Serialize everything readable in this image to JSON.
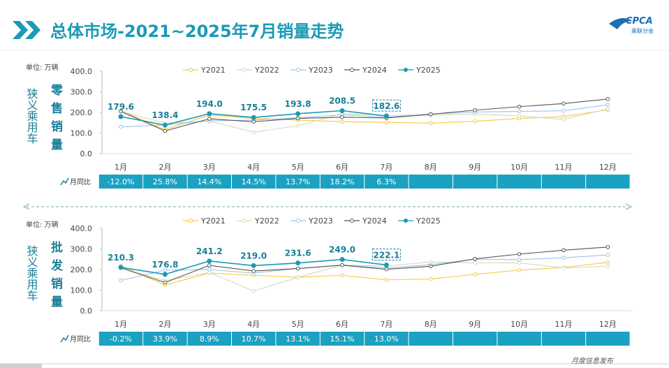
{
  "header": {
    "title": "总体市场-2021~2025年7月销量走势",
    "logo": "CPCA",
    "logo_sub": "乘联分会"
  },
  "footer": "月度信息发布",
  "chart_data": [
    {
      "type": "line",
      "segment": "狭义乘用车",
      "title": "零售销量",
      "unit": "单位: 万辆",
      "categories": [
        "1月",
        "2月",
        "3月",
        "4月",
        "5月",
        "6月",
        "7月",
        "8月",
        "9月",
        "10月",
        "11月",
        "12月"
      ],
      "ylim": [
        0,
        400
      ],
      "yticks": [
        {
          "value": 0,
          "label": "0.0"
        },
        {
          "value": 100,
          "label": "100.0"
        },
        {
          "value": 200,
          "label": "200.0"
        },
        {
          "value": 300,
          "label": "300.0"
        },
        {
          "value": 400,
          "label": "400.0"
        }
      ],
      "series": [
        {
          "name": "Y2021",
          "color": "#f5c842",
          "values": [
            208,
            117,
            187,
            171,
            163,
            155,
            152,
            148,
            157,
            171,
            180,
            213
          ]
        },
        {
          "name": "Y2022",
          "color": "#d3dcba",
          "values": [
            205,
            148,
            158,
            104,
            135,
            194,
            186,
            187,
            192,
            183,
            166,
            217
          ]
        },
        {
          "name": "Y2023",
          "color": "#9ec3ea",
          "values": [
            130,
            139,
            159,
            163,
            174,
            189,
            177,
            192,
            202,
            205,
            208,
            237
          ]
        },
        {
          "name": "Y2024",
          "color": "#555555",
          "values": [
            205,
            110,
            169,
            155,
            171,
            177,
            173,
            191,
            211,
            228,
            243,
            265
          ]
        },
        {
          "name": "Y2025",
          "color": "#1a9bb5",
          "values": [
            179.6,
            138.4,
            194.0,
            175.5,
            193.8,
            208.5,
            182.6,
            null,
            null,
            null,
            null,
            null
          ],
          "value_labels": [
            "179.6",
            "138.4",
            "194.0",
            "175.5",
            "193.8",
            "208.5",
            "182.6",
            null,
            null,
            null,
            null,
            null
          ]
        }
      ],
      "yoy": {
        "label": "月同比",
        "values": [
          -12.0,
          25.8,
          14.4,
          14.5,
          13.7,
          18.2,
          6.3
        ],
        "value_labels": [
          "-12.0%",
          "25.8%",
          "14.4%",
          "14.5%",
          "13.7%",
          "18.2%",
          "6.3%"
        ]
      }
    },
    {
      "type": "line",
      "segment": "狭义乘用车",
      "title": "批发销量",
      "unit": "单位: 万辆",
      "categories": [
        "1月",
        "2月",
        "3月",
        "4月",
        "5月",
        "6月",
        "7月",
        "8月",
        "9月",
        "10月",
        "11月",
        "12月"
      ],
      "ylim": [
        0,
        400
      ],
      "yticks": [
        {
          "value": 0,
          "label": "0.0"
        },
        {
          "value": 100,
          "label": "100.0"
        },
        {
          "value": 200,
          "label": "200.0"
        },
        {
          "value": 300,
          "label": "300.0"
        },
        {
          "value": 400,
          "label": "400.0"
        }
      ],
      "series": [
        {
          "name": "Y2021",
          "color": "#f5c842",
          "values": [
            218,
            125,
            183,
            172,
            163,
            172,
            150,
            154,
            177,
            197,
            210,
            235
          ]
        },
        {
          "name": "Y2022",
          "color": "#d3dcba",
          "values": [
            208,
            147,
            185,
            96,
            162,
            222,
            217,
            237,
            233,
            232,
            208,
            216
          ]
        },
        {
          "name": "Y2023",
          "color": "#9ec3ea",
          "values": [
            147,
            197,
            200,
            183,
            205,
            222,
            207,
            224,
            250,
            248,
            257,
            271
          ]
        },
        {
          "name": "Y2024",
          "color": "#555555",
          "values": [
            208,
            137,
            220,
            193,
            205,
            221,
            201,
            216,
            252,
            275,
            294,
            309
          ]
        },
        {
          "name": "Y2025",
          "color": "#1a9bb5",
          "values": [
            210.3,
            176.8,
            241.2,
            219.0,
            231.6,
            249.0,
            222.1,
            null,
            null,
            null,
            null,
            null
          ],
          "value_labels": [
            "210.3",
            "176.8",
            "241.2",
            "219.0",
            "231.6",
            "249.0",
            "222.1",
            null,
            null,
            null,
            null,
            null
          ]
        }
      ],
      "yoy": {
        "label": "月同比",
        "values": [
          -0.2,
          33.9,
          8.9,
          10.7,
          13.1,
          15.1,
          13.0
        ],
        "value_labels": [
          "-0.2%",
          "33.9%",
          "8.9%",
          "10.7%",
          "13.1%",
          "15.1%",
          "13.0%"
        ]
      }
    }
  ]
}
